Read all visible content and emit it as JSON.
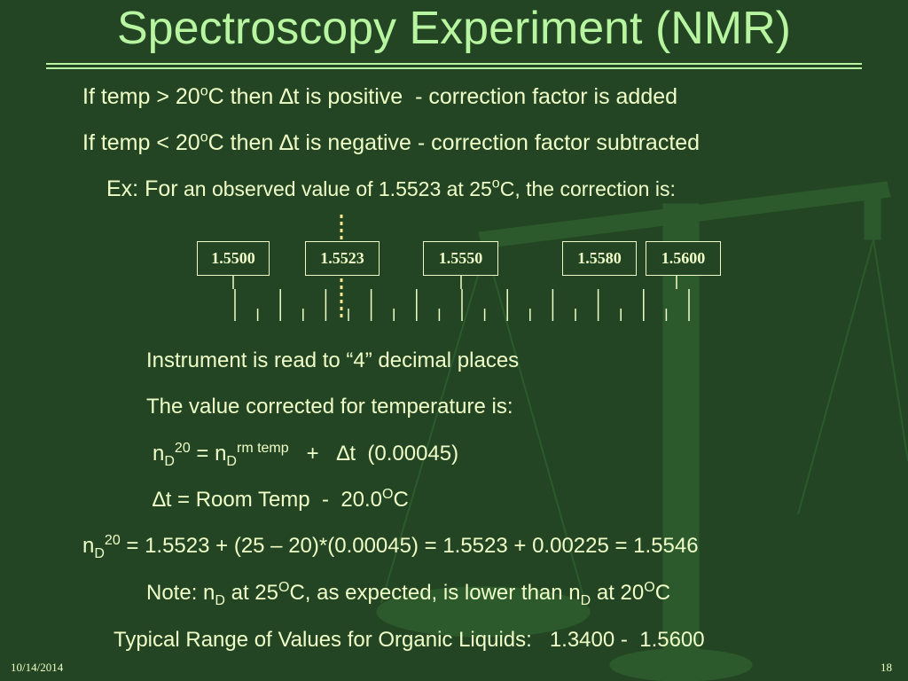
{
  "title": "Spectroscopy Experiment (NMR)",
  "rules": [
    [
      "If temp > 20",
      "o",
      "C then ",
      "∆",
      "t is positive  - correction factor is added"
    ],
    [
      "If temp < 20",
      "o",
      "C then ",
      "∆",
      "t is negative - correction factor subtracted"
    ]
  ],
  "example": [
    "Ex: For",
    " an observed value of 1.5523 at 25",
    "o",
    "C, the correction is:"
  ],
  "scale_labels": [
    "1.5500",
    "1.5523",
    "1.5550",
    "1.5580",
    "1.5600"
  ],
  "instrument": "Instrument is read to “4” decimal places",
  "corrected": "The value corrected for temperature is:",
  "formula": [
    "n",
    "D",
    "20",
    " = n",
    "D",
    "rm temp",
    "   +   ",
    "∆",
    "t  (0.00045)"
  ],
  "delta": [
    "∆",
    "t = Room Temp  -  20.0",
    "O",
    "C"
  ],
  "calculation": [
    "n",
    "D",
    "20",
    " = 1.5523 + (25 – 20)*(0.00045) = 1.5523 + 0.00225 = 1.5546"
  ],
  "note": [
    "Note: n",
    "D",
    " at 25",
    "O",
    "C, as expected, is lower than n",
    "D",
    " at 20",
    "O",
    "C"
  ],
  "range": "Typical Range of Values for Organic Liquids:   1.3400 -  1.5600",
  "footer": {
    "date": "10/14/2014",
    "page": "18"
  }
}
